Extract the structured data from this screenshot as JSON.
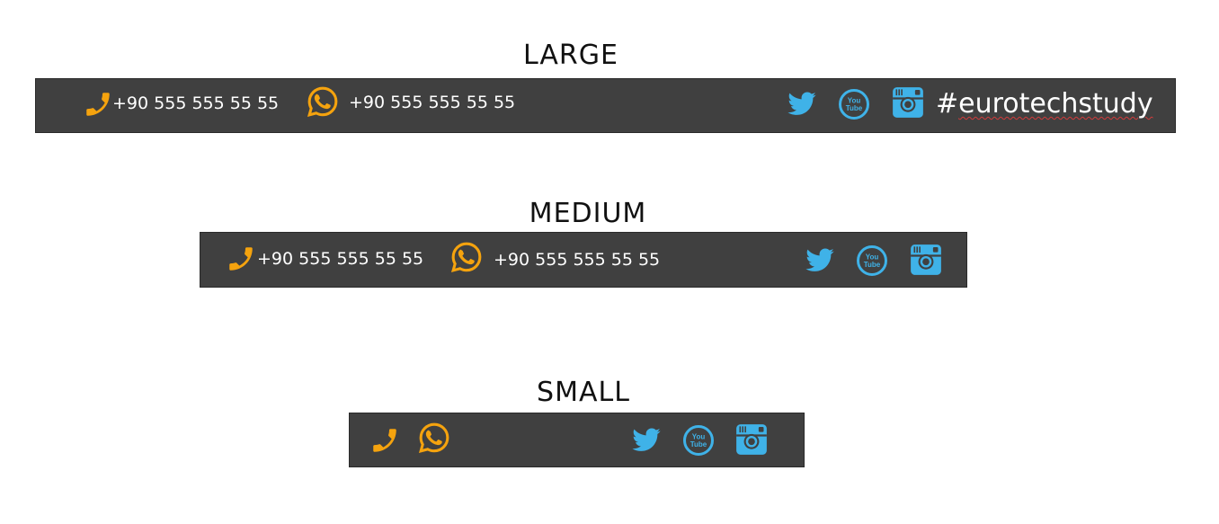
{
  "colors": {
    "bar_background": "#404040",
    "phone_accent": "#f5a30e",
    "social_accent": "#3fb2e8",
    "text": "#ffffff"
  },
  "large": {
    "title": "LARGE",
    "phone_number": "+90 555 555 55 55",
    "whatsapp_number": "+90 555 555 55 55",
    "hashtag_prefix": "#",
    "hashtag_word": "eurotechstudy",
    "icons": [
      "phone-icon",
      "whatsapp-icon",
      "twitter-icon",
      "youtube-icon",
      "instagram-icon"
    ]
  },
  "medium": {
    "title": "MEDIUM",
    "phone_number": "+90 555 555 55 55",
    "whatsapp_number": "+90 555 555 55 55",
    "icons": [
      "phone-icon",
      "whatsapp-icon",
      "twitter-icon",
      "youtube-icon",
      "instagram-icon"
    ]
  },
  "small": {
    "title": "SMALL",
    "icons": [
      "phone-icon",
      "whatsapp-icon",
      "twitter-icon",
      "youtube-icon",
      "instagram-icon"
    ]
  },
  "youtube_badge": {
    "line1": "You",
    "line2": "Tube"
  }
}
